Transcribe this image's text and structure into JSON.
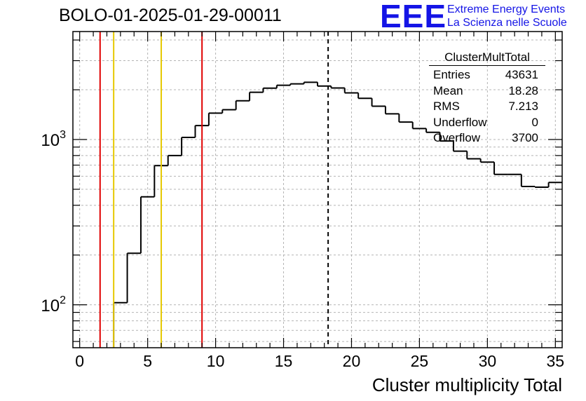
{
  "title": "BOLO-01-2025-01-29-00011",
  "logo": {
    "text": "EEE",
    "line1": "Extreme Energy Events",
    "line2": "La Scienza nelle Scuole",
    "color": "#1414e6"
  },
  "stats_box": {
    "title": "ClusterMultTotal",
    "rows": [
      {
        "label": "Entries",
        "value": "43631"
      },
      {
        "label": "Mean",
        "value": "18.28"
      },
      {
        "label": "RMS",
        "value": "7.213"
      },
      {
        "label": "Underflow",
        "value": "0"
      },
      {
        "label": "Overflow",
        "value": "3700"
      }
    ]
  },
  "chart_data": {
    "type": "histogram",
    "xlabel": "Cluster multiplicity Total",
    "ylabel": "",
    "x_scale": "linear",
    "y_scale": "log",
    "xlim": [
      -0.5,
      35.5
    ],
    "ylim": [
      55,
      4500
    ],
    "grid": true,
    "x_ticks": [
      0,
      5,
      10,
      15,
      20,
      25,
      30,
      35
    ],
    "y_ticks": [
      {
        "value": 100,
        "label": "10",
        "exp": "2"
      },
      {
        "value": 1000,
        "label": "10",
        "exp": "3"
      }
    ],
    "bin_edges": [
      -0.5,
      0.5,
      1.5,
      2.5,
      3.5,
      4.5,
      5.5,
      6.5,
      7.5,
      8.5,
      9.5,
      10.5,
      11.5,
      12.5,
      13.5,
      14.5,
      15.5,
      16.5,
      17.5,
      18.5,
      19.5,
      20.5,
      21.5,
      22.5,
      23.5,
      24.5,
      25.5,
      26.5,
      27.5,
      28.5,
      29.5,
      30.5,
      31.5,
      32.5,
      33.5,
      34.5,
      35.5
    ],
    "counts": [
      0,
      0,
      0,
      103,
      205,
      450,
      695,
      800,
      1030,
      1215,
      1445,
      1515,
      1715,
      1930,
      2045,
      2130,
      2170,
      2220,
      2105,
      2050,
      1915,
      1775,
      1590,
      1430,
      1275,
      1165,
      1105,
      980,
      850,
      765,
      730,
      615,
      615,
      520,
      515,
      550
    ],
    "line_color": "#000000",
    "mean": 18.28,
    "mean_line_style": "dashed black",
    "vertical_lines": [
      {
        "x": 1.5,
        "color": "#e00000"
      },
      {
        "x": 2.5,
        "color": "#e6c800"
      },
      {
        "x": 6.0,
        "color": "#e6c800"
      },
      {
        "x": 9.0,
        "color": "#e00000"
      }
    ]
  }
}
